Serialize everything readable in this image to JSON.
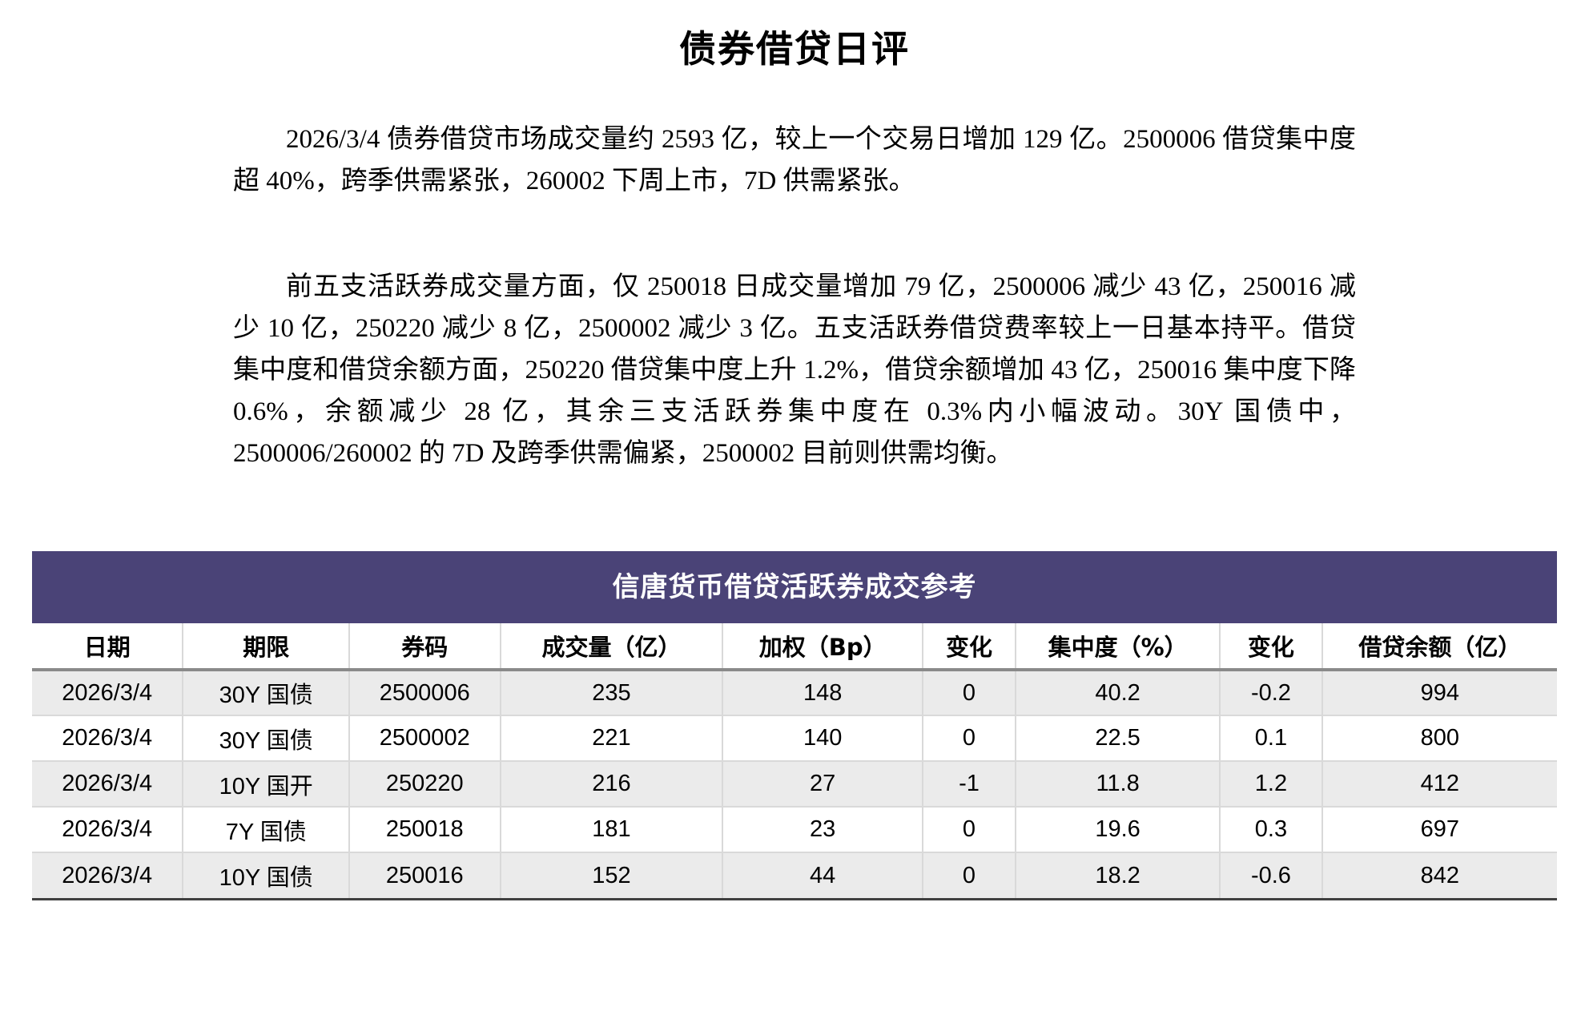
{
  "document": {
    "title": "债券借贷日评",
    "paragraphs": [
      "2026/3/4 债券借贷市场成交量约 2593 亿，较上一个交易日增加 129 亿。2500006 借贷集中度超 40%，跨季供需紧张，260002 下周上市，7D 供需紧张。",
      "前五支活跃券成交量方面，仅 250018 日成交量增加 79 亿，2500006 减少 43 亿，250016 减少 10 亿，250220 减少 8 亿，2500002 减少 3 亿。五支活跃券借贷费率较上一日基本持平。借贷集中度和借贷余额方面，250220 借贷集中度上升 1.2%，借贷余额增加 43 亿，250016 集中度下降 0.6%，余额减少 28 亿，其余三支活跃券集中度在 0.3%内小幅波动。30Y 国债中，2500006/260002 的 7D 及跨季供需偏紧，2500002 目前则供需均衡。"
    ]
  },
  "table": {
    "title": "信唐货币借贷活跃券成交参考",
    "columns": [
      "日期",
      "期限",
      "券码",
      "成交量（亿）",
      "加权（Bp）",
      "变化",
      "集中度（%）",
      "变化",
      "借贷余额（亿）"
    ],
    "rows": [
      [
        "2026/3/4",
        "30Y 国债",
        "2500006",
        "235",
        "148",
        "0",
        "40.2",
        "-0.2",
        "994"
      ],
      [
        "2026/3/4",
        "30Y 国债",
        "2500002",
        "221",
        "140",
        "0",
        "22.5",
        "0.1",
        "800"
      ],
      [
        "2026/3/4",
        "10Y 国开",
        "250220",
        "216",
        "27",
        "-1",
        "11.8",
        "1.2",
        "412"
      ],
      [
        "2026/3/4",
        "7Y 国债",
        "250018",
        "181",
        "23",
        "0",
        "19.6",
        "0.3",
        "697"
      ],
      [
        "2026/3/4",
        "10Y 国债",
        "250016",
        "152",
        "44",
        "0",
        "18.2",
        "-0.6",
        "842"
      ]
    ]
  },
  "colors": {
    "band_bg": "#4a4377",
    "band_text": "#ffffff",
    "row_stripe": "#ebebeb",
    "divider": "#d9d9d9",
    "header_underline": "#8a8a8a",
    "table_bottom_border": "#404040"
  }
}
